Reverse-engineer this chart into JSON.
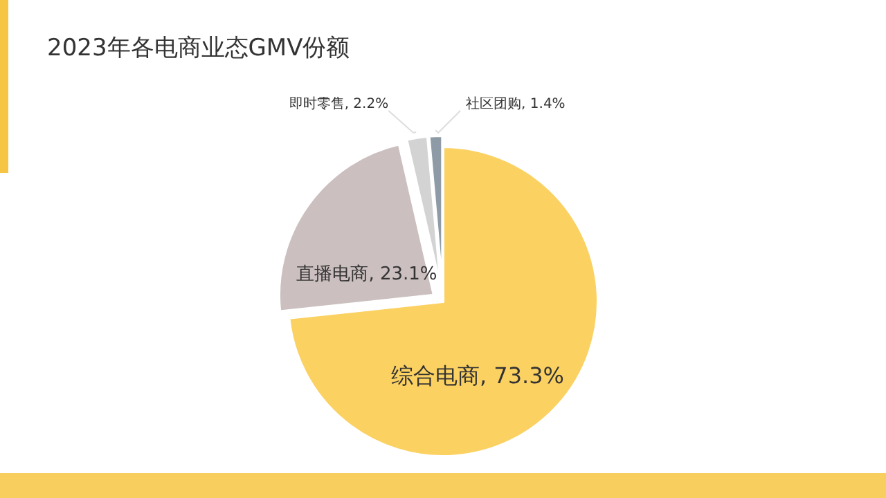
{
  "chart_data": {
    "type": "pie",
    "title": "2023年各电商业态GMV份额",
    "categories": [
      "综合电商",
      "直播电商",
      "即时零售",
      "社区团购"
    ],
    "values": [
      73.3,
      23.1,
      2.2,
      1.4
    ],
    "value_labels": [
      "73.3%",
      "23.1%",
      "2.2%",
      "1.4%"
    ],
    "colors": [
      "#fbd162",
      "#cbbfbf",
      "#d3d3d3",
      "#8e9ba6"
    ]
  }
}
